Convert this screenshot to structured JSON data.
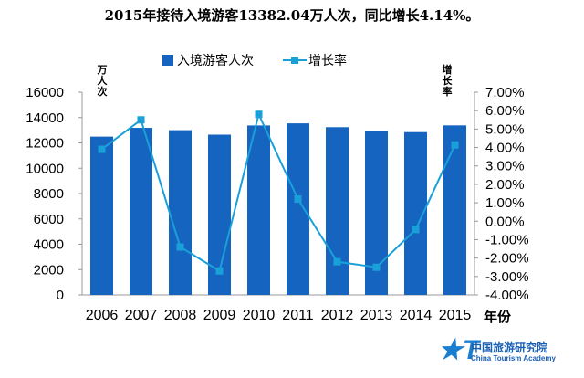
{
  "chart_data": {
    "type": "bar+line",
    "title": "2015年接待入境游客13382.04万人次，同比增长4.14%。",
    "categories": [
      "2006",
      "2007",
      "2008",
      "2009",
      "2010",
      "2011",
      "2012",
      "2013",
      "2014",
      "2015"
    ],
    "series": [
      {
        "name": "入境游客人次",
        "type": "bar",
        "axis": "left",
        "color": "#1565c0",
        "values": [
          12494,
          13187,
          13003,
          12648,
          13376,
          13542,
          13241,
          12908,
          12850,
          13382
        ]
      },
      {
        "name": "增长率",
        "type": "line",
        "axis": "right",
        "color": "#1aa0d8",
        "values": [
          3.9,
          5.5,
          -1.4,
          -2.7,
          5.8,
          1.2,
          -2.2,
          -2.5,
          -0.45,
          4.14
        ]
      }
    ],
    "ylabel": "万人次",
    "y2label": "增长率",
    "xlabel": "年份",
    "ylim": [
      0,
      16000
    ],
    "yticks": [
      "0",
      "2000",
      "4000",
      "6000",
      "8000",
      "10000",
      "12000",
      "14000",
      "16000"
    ],
    "y2lim": [
      -4,
      7
    ],
    "y2ticks": [
      "-4.00%",
      "-3.00%",
      "-2.00%",
      "-1.00%",
      "0.00%",
      "1.00%",
      "2.00%",
      "3.00%",
      "4.00%",
      "5.00%",
      "6.00%",
      "7.00%"
    ],
    "legend": "top"
  },
  "logo": {
    "cn": "中国旅游研究院",
    "en": "China Tourism Academy",
    "mark": "T"
  }
}
